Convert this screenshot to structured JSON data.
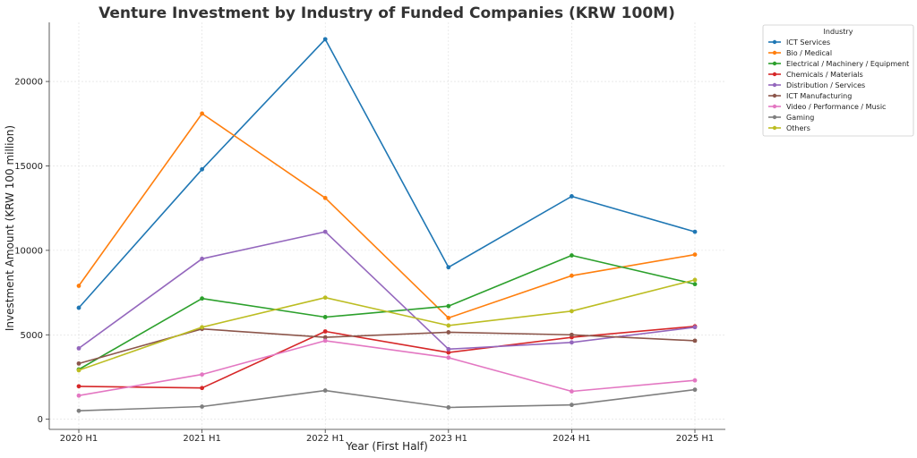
{
  "chart_data": {
    "type": "line",
    "title": "Venture Investment by Industry of Funded Companies (KRW 100M)",
    "xlabel": "Year (First Half)",
    "ylabel": "Investment Amount (KRW 100 million)",
    "categories": [
      "2020 H1",
      "2021 H1",
      "2022 H1",
      "2023 H1",
      "2024 H1",
      "2025 H1"
    ],
    "ylim": [
      -600,
      23500
    ],
    "yticks": [
      0,
      5000,
      10000,
      15000,
      20000
    ],
    "grid": true,
    "legend": {
      "title": "Industry",
      "placement": "outside-top-right"
    },
    "series": [
      {
        "name": "ICT Services",
        "color": "#1f77b4",
        "values": [
          6600,
          14800,
          22500,
          9000,
          13200,
          11100
        ]
      },
      {
        "name": "Bio / Medical",
        "color": "#ff7f0e",
        "values": [
          7900,
          18100,
          13100,
          6000,
          8500,
          9750
        ]
      },
      {
        "name": "Electrical / Machinery / Equipment",
        "color": "#2ca02c",
        "values": [
          2950,
          7150,
          6050,
          6700,
          9700,
          8000
        ]
      },
      {
        "name": "Chemicals / Materials",
        "color": "#d62728",
        "values": [
          1950,
          1850,
          5200,
          3950,
          4850,
          5500
        ]
      },
      {
        "name": "Distribution / Services",
        "color": "#9467bd",
        "values": [
          4200,
          9500,
          11100,
          4150,
          4550,
          5450
        ]
      },
      {
        "name": "ICT Manufacturing",
        "color": "#8c564b",
        "values": [
          3300,
          5350,
          4850,
          5150,
          5000,
          4650
        ]
      },
      {
        "name": "Video / Performance / Music",
        "color": "#e377c2",
        "values": [
          1400,
          2650,
          4650,
          3650,
          1650,
          2300
        ]
      },
      {
        "name": "Gaming",
        "color": "#7f7f7f",
        "values": [
          500,
          750,
          1700,
          700,
          850,
          1750
        ]
      },
      {
        "name": "Others",
        "color": "#bcbd22",
        "values": [
          2900,
          5450,
          7200,
          5550,
          6400,
          8250
        ]
      }
    ]
  }
}
